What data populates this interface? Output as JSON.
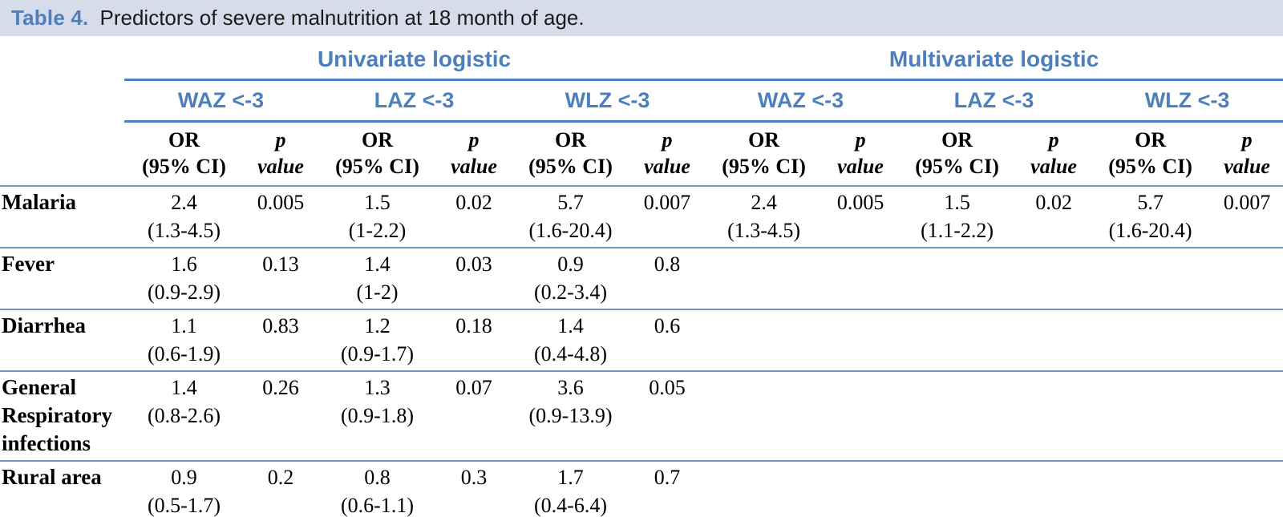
{
  "title": {
    "label": "Table 4.",
    "text": "Predictors of severe malnutrition at 18 month of age."
  },
  "colors": {
    "accent_blue": "#4c7fbb",
    "rule_blue": "#4f81bd",
    "rule_light_blue": "#6c95c6",
    "caption_bar_bg": "#d7dcea",
    "body_text": "#000000"
  },
  "table": {
    "group_headers": [
      {
        "label": "Univariate logistic"
      },
      {
        "label": "Multivariate logistic"
      }
    ],
    "subheaders": [
      "WAZ <-3",
      "LAZ <-3",
      "WLZ <-3",
      "WAZ <-3",
      "LAZ <-3",
      "WLZ <-3"
    ],
    "measure_headers": {
      "or_line1": "OR",
      "or_line2": "(95% CI)",
      "p_line1": "p",
      "p_line2": "value"
    },
    "rows": [
      {
        "label": "Malaria",
        "cells": [
          {
            "or": "2.4",
            "ci": "(1.3-4.5)",
            "p": "0.005"
          },
          {
            "or": "1.5",
            "ci": "(1-2.2)",
            "p": "0.02"
          },
          {
            "or": "5.7",
            "ci": "(1.6-20.4)",
            "p": "0.007"
          },
          {
            "or": "2.4",
            "ci": "(1.3-4.5)",
            "p": "0.005"
          },
          {
            "or": "1.5",
            "ci": "(1.1-2.2)",
            "p": "0.02"
          },
          {
            "or": "5.7",
            "ci": "(1.6-20.4)",
            "p": "0.007"
          }
        ]
      },
      {
        "label": "Fever",
        "cells": [
          {
            "or": "1.6",
            "ci": "(0.9-2.9)",
            "p": "0.13"
          },
          {
            "or": "1.4",
            "ci": "(1-2)",
            "p": "0.03"
          },
          {
            "or": "0.9",
            "ci": "(0.2-3.4)",
            "p": "0.8"
          },
          {
            "or": "",
            "ci": "",
            "p": ""
          },
          {
            "or": "",
            "ci": "",
            "p": ""
          },
          {
            "or": "",
            "ci": "",
            "p": ""
          }
        ]
      },
      {
        "label": "Diarrhea",
        "cells": [
          {
            "or": "1.1",
            "ci": "(0.6-1.9)",
            "p": "0.83"
          },
          {
            "or": "1.2",
            "ci": "(0.9-1.7)",
            "p": "0.18"
          },
          {
            "or": "1.4",
            "ci": "(0.4-4.8)",
            "p": "0.6"
          },
          {
            "or": "",
            "ci": "",
            "p": ""
          },
          {
            "or": "",
            "ci": "",
            "p": ""
          },
          {
            "or": "",
            "ci": "",
            "p": ""
          }
        ]
      },
      {
        "label": "General Respiratory infections",
        "cells": [
          {
            "or": "1.4",
            "ci": "(0.8-2.6)",
            "p": "0.26"
          },
          {
            "or": "1.3",
            "ci": "(0.9-1.8)",
            "p": "0.07"
          },
          {
            "or": "3.6",
            "ci": "(0.9-13.9)",
            "p": "0.05"
          },
          {
            "or": "",
            "ci": "",
            "p": ""
          },
          {
            "or": "",
            "ci": "",
            "p": ""
          },
          {
            "or": "",
            "ci": "",
            "p": ""
          }
        ]
      },
      {
        "label": "Rural area",
        "cells": [
          {
            "or": "0.9",
            "ci": "(0.5-1.7)",
            "p": "0.2"
          },
          {
            "or": "0.8",
            "ci": "(0.6-1.1)",
            "p": "0.3"
          },
          {
            "or": "1.7",
            "ci": "(0.4-6.4)",
            "p": "0.7"
          },
          {
            "or": "",
            "ci": "",
            "p": ""
          },
          {
            "or": "",
            "ci": "",
            "p": ""
          },
          {
            "or": "",
            "ci": "",
            "p": ""
          }
        ]
      }
    ]
  }
}
